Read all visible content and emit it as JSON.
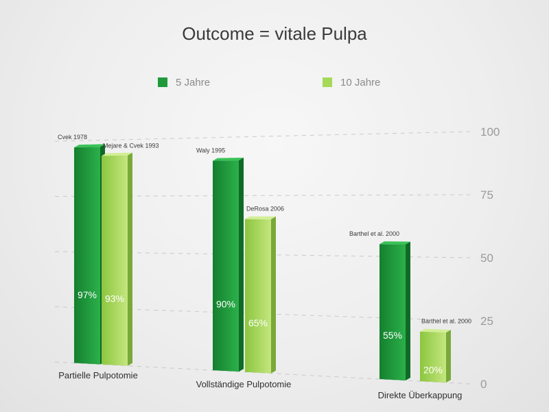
{
  "chart_data": {
    "type": "bar",
    "title": "Outcome = vitale Pulpa",
    "categories": [
      "Partielle Pulpotomie",
      "Vollständige Pulpotomie",
      "Direkte Überkappung"
    ],
    "series": [
      {
        "name": "5 Jahre",
        "color": "#1f9a3b",
        "values": [
          97,
          90,
          55
        ],
        "value_labels": [
          "97%",
          "90%",
          "55%"
        ],
        "sources": [
          "Cvek 1978",
          "Waly 1995",
          "Barthel et al. 2000"
        ]
      },
      {
        "name": "10 Jahre",
        "color": "#a6d957",
        "values": [
          93,
          65,
          20
        ],
        "value_labels": [
          "93%",
          "65%",
          "20%"
        ],
        "sources": [
          "Mejare & Cvek 1993",
          "DeRosa 2006",
          "Barthel et al. 2000"
        ]
      }
    ],
    "yticks": [
      "100",
      "75",
      "50",
      "25",
      "0"
    ],
    "ylim": [
      0,
      100
    ],
    "xlabel": "",
    "ylabel": "",
    "legend": "top",
    "grid": true
  }
}
